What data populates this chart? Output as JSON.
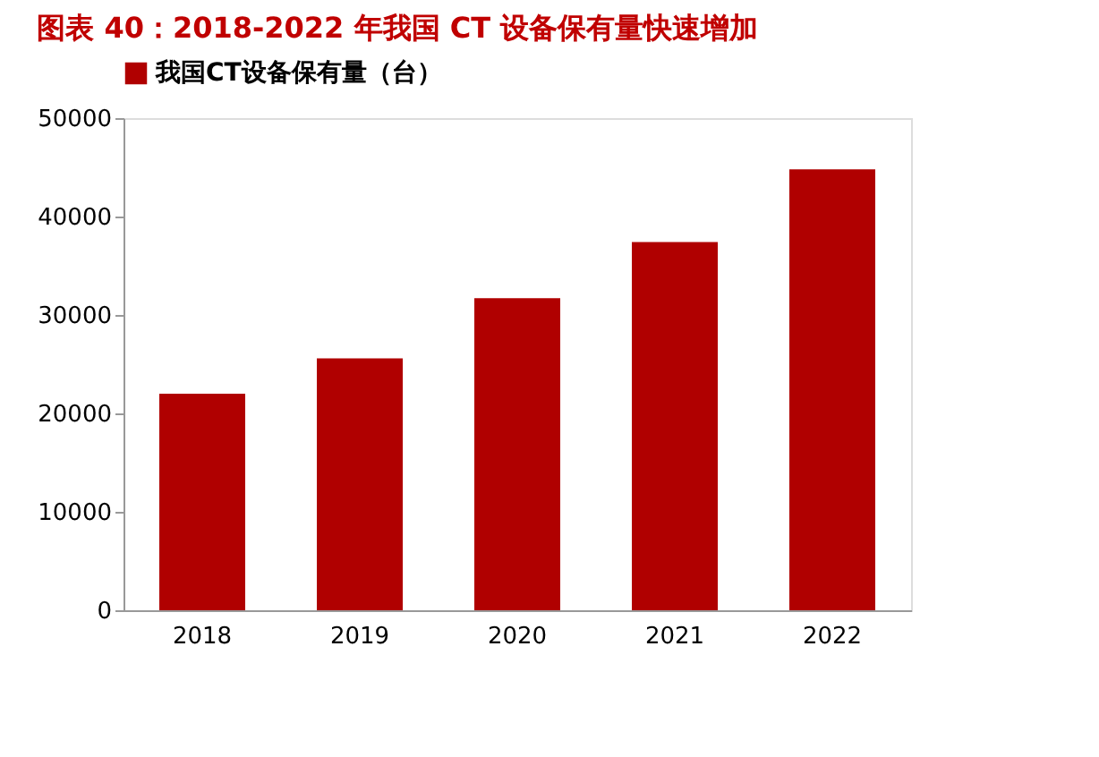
{
  "chart_data": {
    "type": "bar",
    "title": "图表 40：2018-2022 年我国 CT 设备保有量快速增加",
    "categories": [
      "2018",
      "2019",
      "2020",
      "2021",
      "2022"
    ],
    "series": [
      {
        "name": "我国CT设备保有量（台）",
        "color": "#b00000",
        "values": [
          22000,
          25600,
          31700,
          37400,
          44800
        ]
      }
    ],
    "ylim": [
      0,
      50000
    ],
    "yticks": [
      0,
      10000,
      20000,
      30000,
      40000,
      50000
    ],
    "grid": false,
    "legend": "top"
  }
}
